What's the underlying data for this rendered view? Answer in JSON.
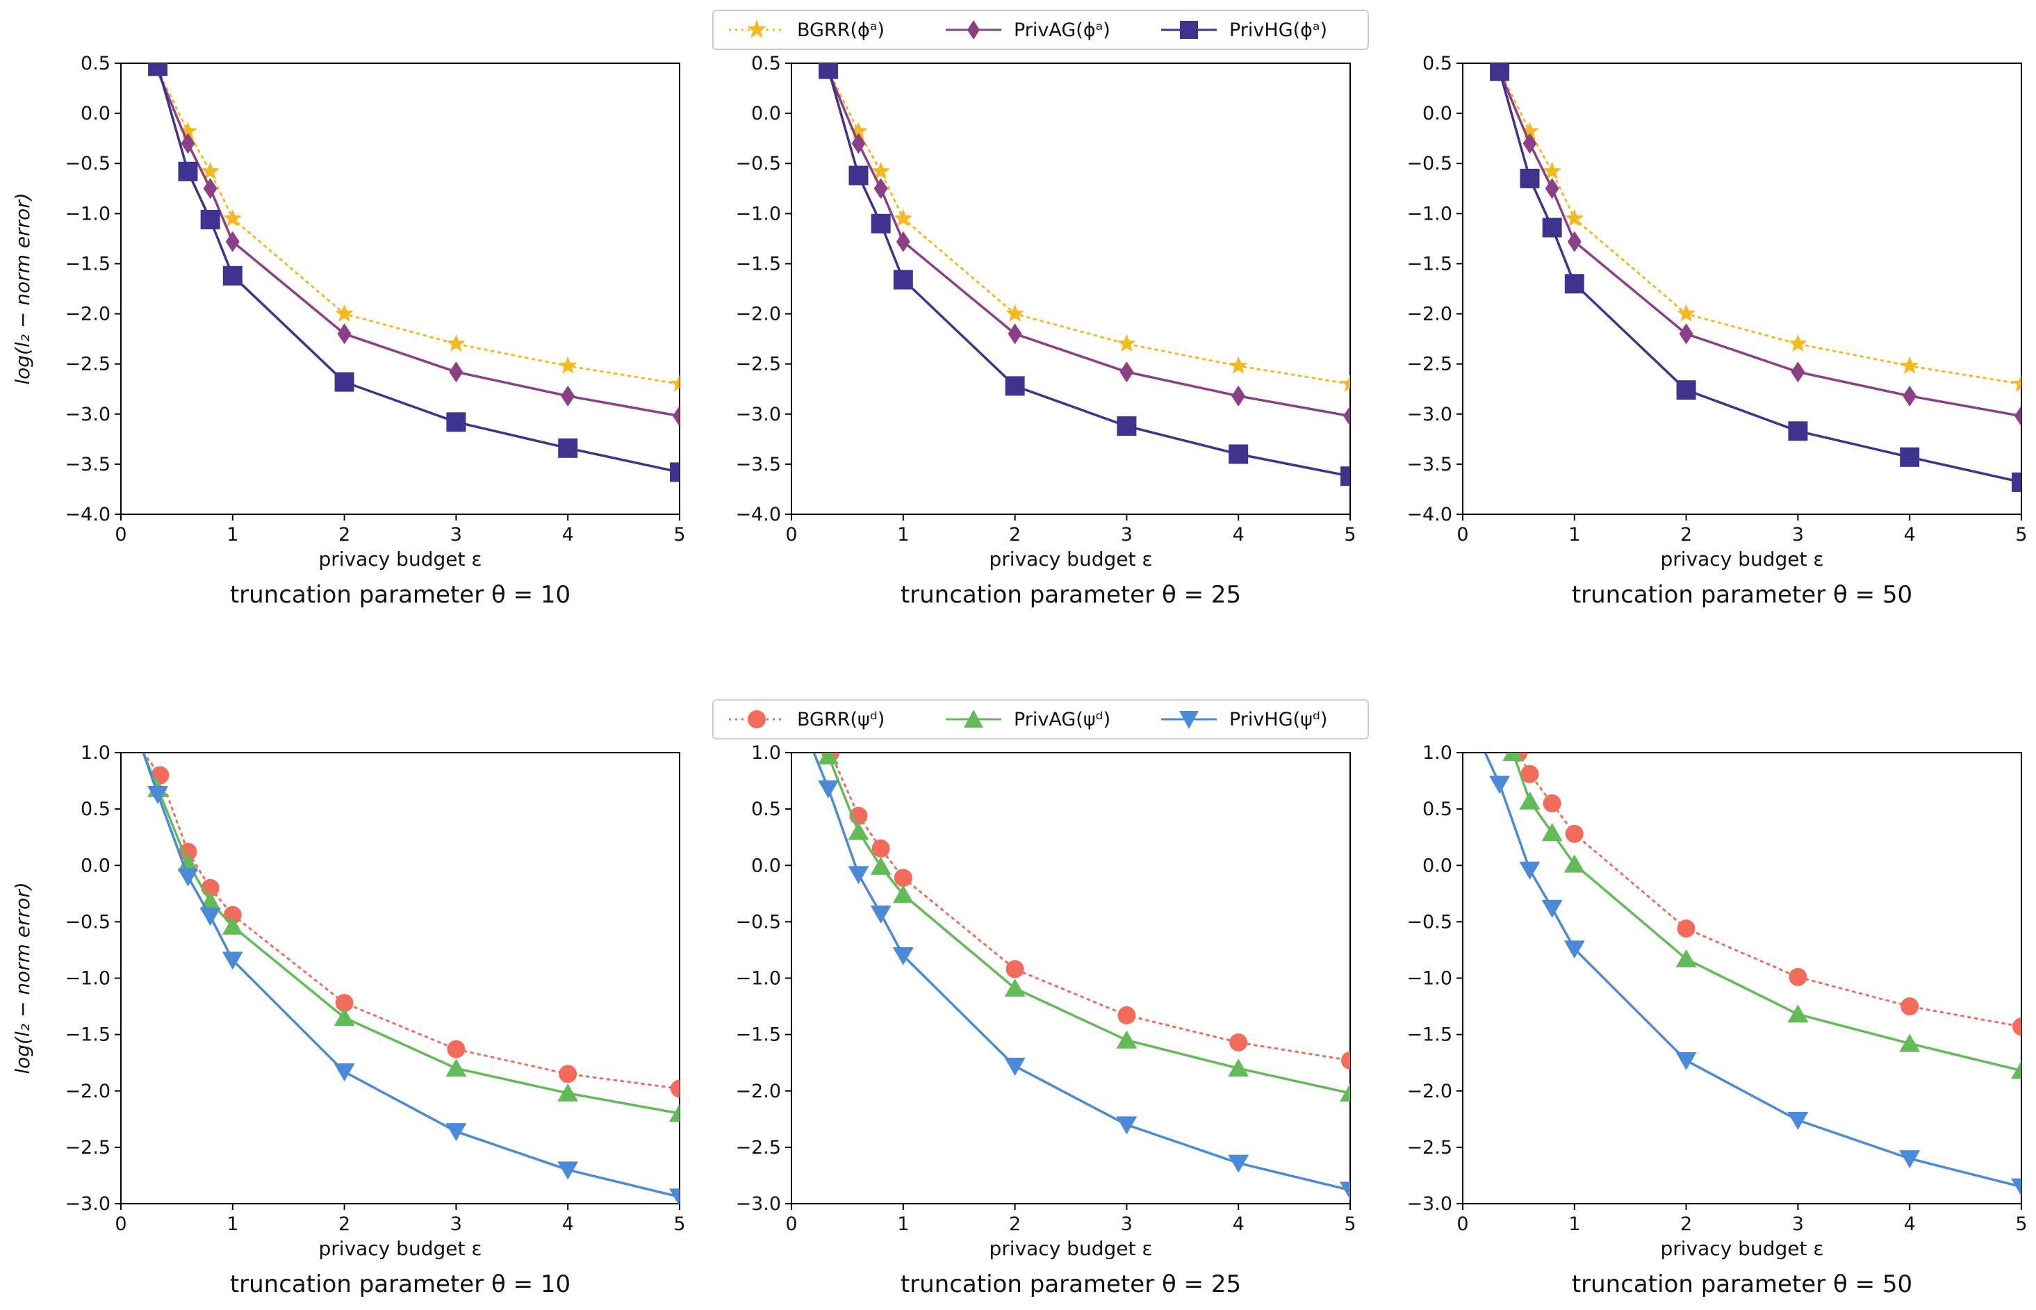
{
  "legends": {
    "top": [
      {
        "label": "BGRR(ϕᵃ)",
        "color": "#f5b820",
        "marker": "star",
        "dash": "dotted"
      },
      {
        "label": "PrivAG(ϕᵃ)",
        "color": "#8b3f86",
        "marker": "diamond",
        "dash": "solid"
      },
      {
        "label": "PrivHG(ϕᵃ)",
        "color": "#3f3390",
        "marker": "square",
        "dash": "solid"
      }
    ],
    "bottom": [
      {
        "label": "BGRR(ψᵈ)",
        "color": "#f26b5b",
        "marker": "circle",
        "dash": "dotted"
      },
      {
        "label": "PrivAG(ψᵈ)",
        "color": "#63bb57",
        "marker": "triangle-up",
        "dash": "solid"
      },
      {
        "label": "PrivHG(ψᵈ)",
        "color": "#4a8ad8",
        "marker": "triangle-down",
        "dash": "solid"
      }
    ]
  },
  "chart_data": [
    {
      "type": "line",
      "row": 0,
      "col": 0,
      "legend": "top",
      "title": "truncation parameter θ = 10",
      "xlabel": "privacy budget ε",
      "ylabel": "log(l₂ − norm error)",
      "xlim": [
        0,
        5
      ],
      "ylim": [
        -4.0,
        0.5
      ],
      "xticks": [
        0,
        1,
        2,
        3,
        4,
        5
      ],
      "yticks": [
        0.5,
        0.0,
        -0.5,
        -1.0,
        -1.5,
        -2.0,
        -2.5,
        -3.0,
        -3.5,
        -4.0
      ],
      "ytick_labels": [
        "0.5",
        "0.0",
        "−0.5",
        "−1.0",
        "−1.5",
        "−2.0",
        "−2.5",
        "−3.0",
        "−3.5",
        "−4.0"
      ],
      "series": [
        {
          "name": "BGRR(ϕᵃ)",
          "x": [
            0.3,
            0.6,
            0.8,
            1,
            2,
            3,
            4,
            5
          ],
          "y": [
            0.5,
            -0.18,
            -0.58,
            -1.05,
            -2.0,
            -2.3,
            -2.52,
            -2.7
          ]
        },
        {
          "name": "PrivAG(ϕᵃ)",
          "x": [
            0.3,
            0.6,
            0.8,
            1,
            2,
            3,
            4,
            5
          ],
          "y": [
            0.5,
            -0.3,
            -0.75,
            -1.28,
            -2.2,
            -2.58,
            -2.82,
            -3.02
          ]
        },
        {
          "name": "PrivHG(ϕᵃ)",
          "x": [
            0.33,
            0.6,
            0.8,
            1,
            2,
            3,
            4,
            5
          ],
          "y": [
            0.47,
            -0.58,
            -1.06,
            -1.62,
            -2.68,
            -3.08,
            -3.34,
            -3.58
          ]
        }
      ]
    },
    {
      "type": "line",
      "row": 0,
      "col": 1,
      "legend": "top",
      "title": "truncation parameter θ = 25",
      "xlabel": "privacy budget ε",
      "ylabel": "",
      "xlim": [
        0,
        5
      ],
      "ylim": [
        -4.0,
        0.5
      ],
      "xticks": [
        0,
        1,
        2,
        3,
        4,
        5
      ],
      "yticks": [
        0.5,
        0.0,
        -0.5,
        -1.0,
        -1.5,
        -2.0,
        -2.5,
        -3.0,
        -3.5,
        -4.0
      ],
      "ytick_labels": [
        "0.5",
        "0.0",
        "−0.5",
        "−1.0",
        "−1.5",
        "−2.0",
        "−2.5",
        "−3.0",
        "−3.5",
        "−4.0"
      ],
      "series": [
        {
          "name": "BGRR(ϕᵃ)",
          "x": [
            0.3,
            0.6,
            0.8,
            1,
            2,
            3,
            4,
            5
          ],
          "y": [
            0.5,
            -0.18,
            -0.58,
            -1.05,
            -2.0,
            -2.3,
            -2.52,
            -2.7
          ]
        },
        {
          "name": "PrivAG(ϕᵃ)",
          "x": [
            0.3,
            0.6,
            0.8,
            1,
            2,
            3,
            4,
            5
          ],
          "y": [
            0.5,
            -0.3,
            -0.75,
            -1.28,
            -2.2,
            -2.58,
            -2.82,
            -3.02
          ]
        },
        {
          "name": "PrivHG(ϕᵃ)",
          "x": [
            0.33,
            0.6,
            0.8,
            1,
            2,
            3,
            4,
            5
          ],
          "y": [
            0.44,
            -0.62,
            -1.1,
            -1.66,
            -2.72,
            -3.12,
            -3.4,
            -3.62
          ]
        }
      ]
    },
    {
      "type": "line",
      "row": 0,
      "col": 2,
      "legend": "top",
      "title": "truncation parameter θ = 50",
      "xlabel": "privacy budget ε",
      "ylabel": "",
      "xlim": [
        0,
        5
      ],
      "ylim": [
        -4.0,
        0.5
      ],
      "xticks": [
        0,
        1,
        2,
        3,
        4,
        5
      ],
      "yticks": [
        0.5,
        0.0,
        -0.5,
        -1.0,
        -1.5,
        -2.0,
        -2.5,
        -3.0,
        -3.5,
        -4.0
      ],
      "ytick_labels": [
        "0.5",
        "0.0",
        "−0.5",
        "−1.0",
        "−1.5",
        "−2.0",
        "−2.5",
        "−3.0",
        "−3.5",
        "−4.0"
      ],
      "series": [
        {
          "name": "BGRR(ϕᵃ)",
          "x": [
            0.3,
            0.6,
            0.8,
            1,
            2,
            3,
            4,
            5
          ],
          "y": [
            0.5,
            -0.18,
            -0.58,
            -1.05,
            -2.0,
            -2.3,
            -2.52,
            -2.7
          ]
        },
        {
          "name": "PrivAG(ϕᵃ)",
          "x": [
            0.3,
            0.6,
            0.8,
            1,
            2,
            3,
            4,
            5
          ],
          "y": [
            0.5,
            -0.3,
            -0.75,
            -1.28,
            -2.2,
            -2.58,
            -2.82,
            -3.02
          ]
        },
        {
          "name": "PrivHG(ϕᵃ)",
          "x": [
            0.33,
            0.6,
            0.8,
            1,
            2,
            3,
            4,
            5
          ],
          "y": [
            0.42,
            -0.65,
            -1.14,
            -1.7,
            -2.76,
            -3.17,
            -3.43,
            -3.68
          ]
        }
      ]
    },
    {
      "type": "line",
      "row": 1,
      "col": 0,
      "legend": "bottom",
      "title": "truncation parameter θ = 10",
      "xlabel": "privacy budget ε",
      "ylabel": "log(l₂ − norm error)",
      "xlim": [
        0,
        5
      ],
      "ylim": [
        -3.0,
        1.0
      ],
      "xticks": [
        0,
        1,
        2,
        3,
        4,
        5
      ],
      "yticks": [
        1.0,
        0.5,
        0.0,
        -0.5,
        -1.0,
        -1.5,
        -2.0,
        -2.5,
        -3.0
      ],
      "ytick_labels": [
        "1.0",
        "0.5",
        "0.0",
        "−0.5",
        "−1.0",
        "−1.5",
        "−2.0",
        "−2.5",
        "−3.0"
      ],
      "series": [
        {
          "name": "BGRR(ψᵈ)",
          "x": [
            0.2,
            0.35,
            0.6,
            0.8,
            1,
            2,
            3,
            4,
            5
          ],
          "y": [
            1.0,
            0.8,
            0.12,
            -0.2,
            -0.44,
            -1.22,
            -1.63,
            -1.85,
            -1.98
          ]
        },
        {
          "name": "PrivAG(ψᵈ)",
          "x": [
            0.2,
            0.33,
            0.6,
            0.8,
            1,
            2,
            3,
            4,
            5
          ],
          "y": [
            1.0,
            0.68,
            0.02,
            -0.32,
            -0.54,
            -1.35,
            -1.8,
            -2.02,
            -2.2
          ]
        },
        {
          "name": "PrivHG(ψᵈ)",
          "x": [
            0.2,
            0.33,
            0.6,
            0.8,
            1,
            2,
            3,
            4,
            5
          ],
          "y": [
            1.0,
            0.63,
            -0.1,
            -0.45,
            -0.84,
            -1.83,
            -2.36,
            -2.7,
            -2.94
          ]
        }
      ]
    },
    {
      "type": "line",
      "row": 1,
      "col": 1,
      "legend": "bottom",
      "title": "truncation parameter θ = 25",
      "xlabel": "privacy budget ε",
      "ylabel": "",
      "xlim": [
        0,
        5
      ],
      "ylim": [
        -3.0,
        1.0
      ],
      "xticks": [
        0,
        1,
        2,
        3,
        4,
        5
      ],
      "yticks": [
        1.0,
        0.5,
        0.0,
        -0.5,
        -1.0,
        -1.5,
        -2.0,
        -2.5,
        -3.0
      ],
      "ytick_labels": [
        "1.0",
        "0.5",
        "0.0",
        "−0.5",
        "−1.0",
        "−1.5",
        "−2.0",
        "−2.5",
        "−3.0"
      ],
      "series": [
        {
          "name": "BGRR(ψᵈ)",
          "x": [
            0.35,
            0.6,
            0.8,
            1,
            2,
            3,
            4,
            5
          ],
          "y": [
            1.0,
            0.44,
            0.15,
            -0.11,
            -0.92,
            -1.33,
            -1.57,
            -1.73
          ]
        },
        {
          "name": "PrivAG(ψᵈ)",
          "x": [
            0.33,
            0.6,
            0.8,
            1,
            2,
            3,
            4,
            5
          ],
          "y": [
            0.97,
            0.3,
            -0.01,
            -0.26,
            -1.09,
            -1.55,
            -1.8,
            -2.02
          ]
        },
        {
          "name": "PrivHG(ψᵈ)",
          "x": [
            0.2,
            0.33,
            0.6,
            0.8,
            1,
            2,
            3,
            4,
            5
          ],
          "y": [
            1.0,
            0.68,
            -0.08,
            -0.43,
            -0.8,
            -1.78,
            -2.3,
            -2.64,
            -2.88
          ]
        }
      ]
    },
    {
      "type": "line",
      "row": 1,
      "col": 2,
      "legend": "bottom",
      "title": "truncation parameter θ = 50",
      "xlabel": "privacy budget ε",
      "ylabel": "",
      "xlim": [
        0,
        5
      ],
      "ylim": [
        -3.0,
        1.0
      ],
      "xticks": [
        0,
        1,
        2,
        3,
        4,
        5
      ],
      "yticks": [
        1.0,
        0.5,
        0.0,
        -0.5,
        -1.0,
        -1.5,
        -2.0,
        -2.5,
        -3.0
      ],
      "ytick_labels": [
        "1.0",
        "0.5",
        "0.0",
        "−0.5",
        "−1.0",
        "−1.5",
        "−2.0",
        "−2.5",
        "−3.0"
      ],
      "series": [
        {
          "name": "BGRR(ψᵈ)",
          "x": [
            0.5,
            0.6,
            0.8,
            1,
            2,
            3,
            4,
            5
          ],
          "y": [
            1.0,
            0.81,
            0.55,
            0.28,
            -0.56,
            -0.99,
            -1.25,
            -1.43
          ]
        },
        {
          "name": "PrivAG(ψᵈ)",
          "x": [
            0.45,
            0.6,
            0.8,
            1,
            2,
            3,
            4,
            5
          ],
          "y": [
            1.0,
            0.57,
            0.29,
            0.01,
            -0.83,
            -1.32,
            -1.58,
            -1.82
          ]
        },
        {
          "name": "PrivHG(ψᵈ)",
          "x": [
            0.2,
            0.33,
            0.6,
            0.8,
            1,
            2,
            3,
            4,
            5
          ],
          "y": [
            1.0,
            0.72,
            -0.04,
            -0.38,
            -0.74,
            -1.73,
            -2.26,
            -2.6,
            -2.85
          ]
        }
      ]
    }
  ]
}
